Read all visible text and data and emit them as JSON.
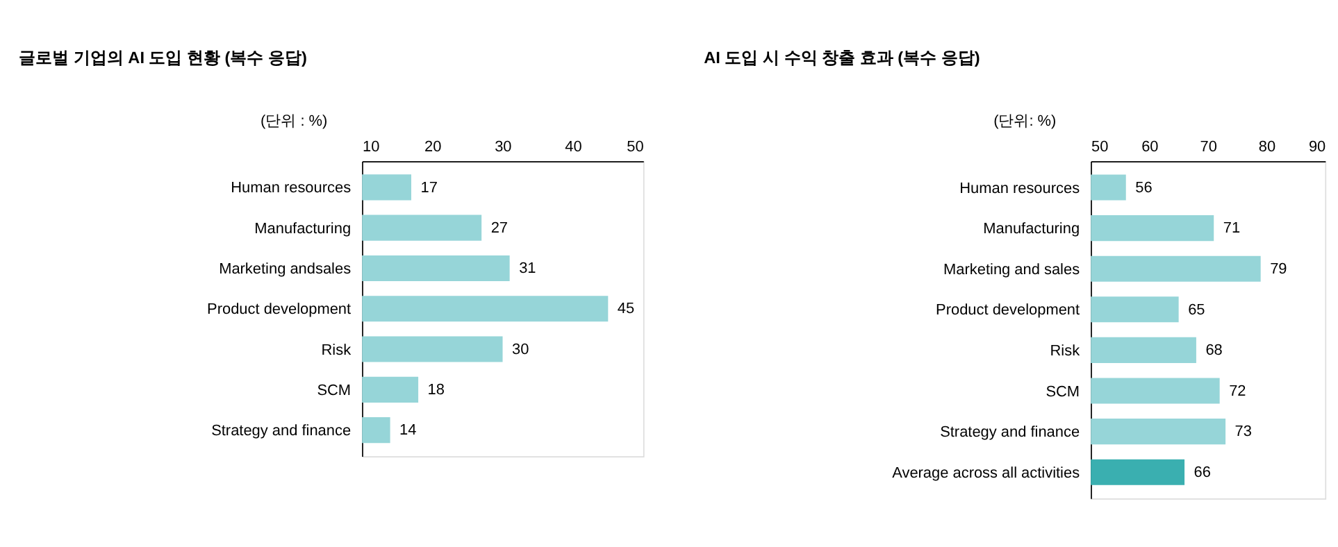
{
  "chart_data": [
    {
      "type": "bar",
      "orientation": "horizontal",
      "title": "글로벌 기업의 AI 도입 현황 (복수 응답)",
      "xlabel": "(단위 : %)",
      "categories": [
        "Human resources",
        "Manufacturing",
        "Marketing andsales",
        "Product development",
        "Risk",
        "SCM",
        "Strategy and finance"
      ],
      "values": [
        17,
        27,
        31,
        45,
        30,
        18,
        14
      ],
      "colors": [
        "#96d5d8",
        "#96d5d8",
        "#96d5d8",
        "#96d5d8",
        "#96d5d8",
        "#96d5d8",
        "#96d5d8"
      ],
      "xlim": [
        10,
        50
      ],
      "xticks": [
        10,
        20,
        30,
        40,
        50
      ],
      "data_labels": true,
      "grid": false,
      "legend": false
    },
    {
      "type": "bar",
      "orientation": "horizontal",
      "title": "AI 도입 시 수익 창출 효과 (복수 응답)",
      "xlabel": "(단위: %)",
      "categories": [
        "Human resources",
        "Manufacturing",
        "Marketing and sales",
        "Product development",
        "Risk",
        "SCM",
        "Strategy and finance",
        "Average across all activities"
      ],
      "values": [
        56,
        71,
        79,
        65,
        68,
        72,
        73,
        66
      ],
      "colors": [
        "#96d5d8",
        "#96d5d8",
        "#96d5d8",
        "#96d5d8",
        "#96d5d8",
        "#96d5d8",
        "#96d5d8",
        "#3aafb0"
      ],
      "xlim": [
        50,
        90
      ],
      "xticks": [
        50,
        60,
        70,
        80,
        90
      ],
      "data_labels": true,
      "grid": false,
      "legend": false
    }
  ]
}
